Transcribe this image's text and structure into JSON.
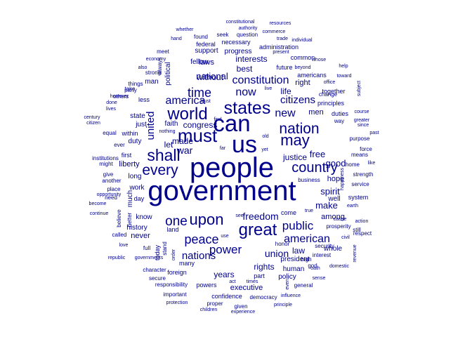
{
  "wordcloud": {
    "color": "#00008B",
    "background": "#ffffff",
    "words": [
      {
        "text": "government",
        "size": 40
      },
      {
        "text": "people",
        "size": 40
      },
      {
        "text": "us",
        "size": 34
      },
      {
        "text": "can",
        "size": 33
      },
      {
        "text": "must",
        "size": 26
      },
      {
        "text": "states",
        "size": 25
      },
      {
        "text": "great",
        "size": 24
      },
      {
        "text": "world",
        "size": 24
      },
      {
        "text": "shall",
        "size": 23
      },
      {
        "text": "may",
        "size": 22
      },
      {
        "text": "upon",
        "size": 22
      },
      {
        "text": "nation",
        "size": 21
      },
      {
        "text": "every",
        "size": 21
      },
      {
        "text": "country",
        "size": 20
      },
      {
        "text": "one",
        "size": 19
      },
      {
        "text": "peace",
        "size": 18
      },
      {
        "text": "time",
        "size": 18
      },
      {
        "text": "power",
        "size": 17
      },
      {
        "text": "public",
        "size": 17
      },
      {
        "text": "new",
        "size": 16
      },
      {
        "text": "now",
        "size": 16
      },
      {
        "text": "constitution",
        "size": 16
      },
      {
        "text": "american",
        "size": 16
      },
      {
        "text": "america",
        "size": 16
      },
      {
        "text": "citizens",
        "size": 15
      },
      {
        "text": "united",
        "size": 15
      },
      {
        "text": "nations",
        "size": 15
      },
      {
        "text": "freedom",
        "size": 14
      },
      {
        "text": "union",
        "size": 14
      },
      {
        "text": "war",
        "size": 14
      },
      {
        "text": "free",
        "size": 13
      },
      {
        "text": "national",
        "size": 13
      },
      {
        "text": "spirit",
        "size": 13
      },
      {
        "text": "make",
        "size": 13
      },
      {
        "text": "good",
        "size": 13
      },
      {
        "text": "justice",
        "size": 12
      },
      {
        "text": "best",
        "size": 12
      },
      {
        "text": "without",
        "size": 12
      },
      {
        "text": "years",
        "size": 12
      },
      {
        "text": "interests",
        "size": 12
      },
      {
        "text": "congress",
        "size": 12
      },
      {
        "text": "rights",
        "size": 12
      },
      {
        "text": "made",
        "size": 12
      },
      {
        "text": "let",
        "size": 12
      },
      {
        "text": "law",
        "size": 12
      },
      {
        "text": "life",
        "size": 12
      },
      {
        "text": "among",
        "size": 11
      },
      {
        "text": "right",
        "size": 11
      },
      {
        "text": "liberty",
        "size": 11
      },
      {
        "text": "hope",
        "size": 11
      },
      {
        "text": "men",
        "size": 11
      },
      {
        "text": "laws",
        "size": 11
      },
      {
        "text": "executive",
        "size": 11
      },
      {
        "text": "never",
        "size": 11
      },
      {
        "text": "fellow",
        "size": 10
      },
      {
        "text": "history",
        "size": 10
      },
      {
        "text": "know",
        "size": 10
      },
      {
        "text": "work",
        "size": 10
      },
      {
        "text": "whole",
        "size": 10
      },
      {
        "text": "long",
        "size": 10
      },
      {
        "text": "faith",
        "size": 10
      },
      {
        "text": "man",
        "size": 10
      },
      {
        "text": "policy",
        "size": 10
      },
      {
        "text": "state",
        "size": 10
      },
      {
        "text": "duty",
        "size": 10
      },
      {
        "text": "progress",
        "size": 10
      },
      {
        "text": "support",
        "size": 10
      },
      {
        "text": "political",
        "size": 10
      },
      {
        "text": "much",
        "size": 10
      },
      {
        "text": "just",
        "size": 10
      },
      {
        "text": "human",
        "size": 10
      },
      {
        "text": "well",
        "size": 10
      },
      {
        "text": "president",
        "size": 10
      },
      {
        "text": "today",
        "size": 9
      },
      {
        "text": "many",
        "size": 9
      },
      {
        "text": "foreign",
        "size": 9
      },
      {
        "text": "powers",
        "size": 9
      },
      {
        "text": "confidence",
        "size": 9
      },
      {
        "text": "administration",
        "size": 9
      },
      {
        "text": "necessary",
        "size": 9
      },
      {
        "text": "federal",
        "size": 9
      },
      {
        "text": "common",
        "size": 9
      },
      {
        "text": "future",
        "size": 9
      },
      {
        "text": "americans",
        "size": 9
      },
      {
        "text": "first",
        "size": 9
      },
      {
        "text": "part",
        "size": 9
      },
      {
        "text": "come",
        "size": 9
      },
      {
        "text": "system",
        "size": 9
      },
      {
        "text": "principles",
        "size": 9
      },
      {
        "text": "together",
        "size": 9
      },
      {
        "text": "duties",
        "size": 9
      },
      {
        "text": "less",
        "size": 9
      },
      {
        "text": "within",
        "size": 9
      },
      {
        "text": "day",
        "size": 9
      },
      {
        "text": "land",
        "size": 9
      },
      {
        "text": "ever",
        "size": 8
      },
      {
        "text": "always",
        "size": 8
      },
      {
        "text": "strength",
        "size": 8
      },
      {
        "text": "service",
        "size": 8
      },
      {
        "text": "purpose",
        "size": 8
      },
      {
        "text": "home",
        "size": 8
      },
      {
        "text": "way",
        "size": 8
      },
      {
        "text": "means",
        "size": 8
      },
      {
        "text": "force",
        "size": 8
      },
      {
        "text": "prosperity",
        "size": 8
      },
      {
        "text": "god",
        "size": 8
      },
      {
        "text": "still",
        "size": 8
      },
      {
        "text": "respect",
        "size": 8
      },
      {
        "text": "character",
        "size": 8
      },
      {
        "text": "general",
        "size": 8
      },
      {
        "text": "responsibility",
        "size": 8
      },
      {
        "text": "democracy",
        "size": 8
      },
      {
        "text": "security",
        "size": 8
      },
      {
        "text": "interest",
        "size": 8
      },
      {
        "text": "business",
        "size": 8
      },
      {
        "text": "believe",
        "size": 8
      },
      {
        "text": "secure",
        "size": 8
      },
      {
        "text": "important",
        "size": 8
      },
      {
        "text": "proper",
        "size": 8
      },
      {
        "text": "given",
        "size": 8
      },
      {
        "text": "question",
        "size": 8
      },
      {
        "text": "seek",
        "size": 8
      },
      {
        "text": "found",
        "size": 8
      },
      {
        "text": "meet",
        "size": 8
      },
      {
        "text": "strong",
        "size": 8
      },
      {
        "text": "things",
        "size": 8
      },
      {
        "text": "take",
        "size": 8
      },
      {
        "text": "party",
        "size": 8
      },
      {
        "text": "change",
        "size": 8
      },
      {
        "text": "place",
        "size": 8
      },
      {
        "text": "need",
        "size": 8
      },
      {
        "text": "equal",
        "size": 8
      },
      {
        "text": "might",
        "size": 8
      },
      {
        "text": "give",
        "size": 8
      },
      {
        "text": "another",
        "size": 8
      },
      {
        "text": "better",
        "size": 8
      },
      {
        "text": "stand",
        "size": 8
      },
      {
        "text": "full",
        "size": 8
      },
      {
        "text": "high",
        "size": 8
      },
      {
        "text": "honor",
        "size": 8
      },
      {
        "text": "called",
        "size": 8
      },
      {
        "text": "institutions",
        "size": 8
      },
      {
        "text": "others",
        "size": 8
      },
      {
        "text": "trust",
        "size": 7
      },
      {
        "text": "find",
        "size": 7
      },
      {
        "text": "far",
        "size": 7
      },
      {
        "text": "yet",
        "size": 7
      },
      {
        "text": "old",
        "size": 7
      },
      {
        "text": "live",
        "size": 7
      },
      {
        "text": "office",
        "size": 7
      },
      {
        "text": "whose",
        "size": 7
      },
      {
        "text": "beyond",
        "size": 7
      },
      {
        "text": "present",
        "size": 7
      },
      {
        "text": "trade",
        "size": 7
      },
      {
        "text": "commerce",
        "size": 7
      },
      {
        "text": "authority",
        "size": 7
      },
      {
        "text": "constitutional",
        "size": 7
      },
      {
        "text": "resources",
        "size": 7
      },
      {
        "text": "individual",
        "size": 7
      },
      {
        "text": "whether",
        "size": 7
      },
      {
        "text": "hand",
        "size": 7
      },
      {
        "text": "economy",
        "size": 7
      },
      {
        "text": "also",
        "size": 7
      },
      {
        "text": "however",
        "size": 7
      },
      {
        "text": "done",
        "size": 7
      },
      {
        "text": "lives",
        "size": 7
      },
      {
        "text": "century",
        "size": 7
      },
      {
        "text": "citizen",
        "size": 7
      },
      {
        "text": "opportunity",
        "size": 7
      },
      {
        "text": "become",
        "size": 7
      },
      {
        "text": "continue",
        "size": 7
      },
      {
        "text": "nothing",
        "size": 7
      },
      {
        "text": "love",
        "size": 7
      },
      {
        "text": "republic",
        "size": 7
      },
      {
        "text": "governments",
        "size": 7
      },
      {
        "text": "order",
        "size": 7
      },
      {
        "text": "see",
        "size": 7
      },
      {
        "text": "use",
        "size": 7
      },
      {
        "text": "act",
        "size": 7
      },
      {
        "text": "times",
        "size": 7
      },
      {
        "text": "even",
        "size": 7
      },
      {
        "text": "oath",
        "size": 7
      },
      {
        "text": "true",
        "size": 7
      },
      {
        "text": "cause",
        "size": 7
      },
      {
        "text": "action",
        "size": 7
      },
      {
        "text": "earth",
        "size": 7
      },
      {
        "text": "like",
        "size": 7
      },
      {
        "text": "past",
        "size": 7
      },
      {
        "text": "course",
        "size": 7
      },
      {
        "text": "greater",
        "size": 7
      },
      {
        "text": "since",
        "size": 7
      },
      {
        "text": "subject",
        "size": 7
      },
      {
        "text": "toward",
        "size": 7
      },
      {
        "text": "help",
        "size": 7
      },
      {
        "text": "happiness",
        "size": 7
      },
      {
        "text": "civil",
        "size": 7
      },
      {
        "text": "revenue",
        "size": 7
      },
      {
        "text": "domestic",
        "size": 7
      },
      {
        "text": "sense",
        "size": 7
      },
      {
        "text": "influence",
        "size": 7
      },
      {
        "text": "principle",
        "size": 7
      },
      {
        "text": "experience",
        "size": 7
      },
      {
        "text": "children",
        "size": 7
      },
      {
        "text": "protection",
        "size": 7
      },
      {
        "text": "countrymen",
        "size": 7
      }
    ]
  }
}
